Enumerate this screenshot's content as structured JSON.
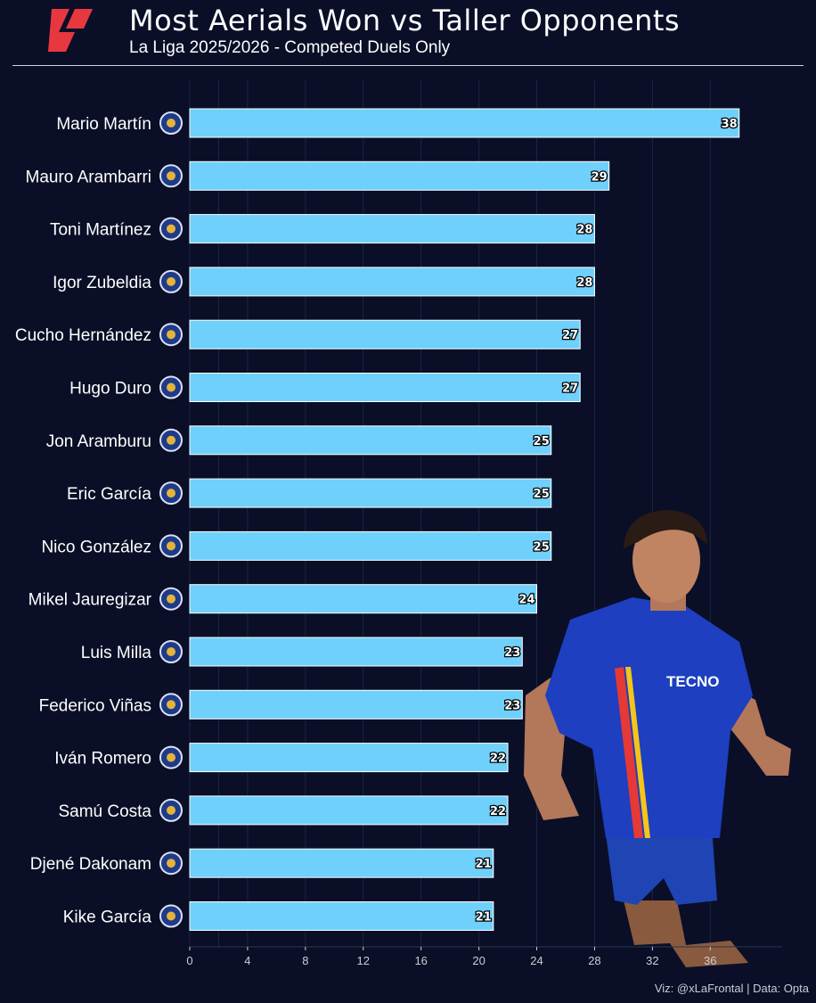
{
  "header": {
    "title": "Most Aerials Won vs Taller Opponents",
    "subtitle": "La Liga 2025/2026 - Competed Duels Only",
    "logo_icon": "laliga-logo-icon",
    "logo_color": "#e8383f"
  },
  "footer": {
    "credit": "Viz: @xLaFrontal | Data: Opta"
  },
  "colors": {
    "background": "#0a0f27",
    "bar": "#6fd0fb",
    "bar_border": "#ffffff",
    "grid": "#1d2542"
  },
  "photo": {
    "icon": "player-photo-getafe-kit-icon"
  },
  "chart_data": {
    "type": "bar",
    "orientation": "horizontal",
    "title": "Most Aerials Won vs Taller Opponents",
    "subtitle": "La Liga 2025/2026 - Competed Duels Only",
    "xlabel": "",
    "ylabel": "",
    "xlim": [
      0,
      41
    ],
    "xticks": [
      0,
      4,
      8,
      12,
      16,
      20,
      24,
      28,
      32,
      36
    ],
    "grid": "vertical",
    "categories": [
      "Mario Martín",
      "Mauro Arambarri",
      "Toni Martínez",
      "Igor Zubeldia",
      "Cucho Hernández",
      "Hugo Duro",
      "Jon Aramburu",
      "Eric García",
      "Nico González",
      "Mikel Jauregizar",
      "Luis Milla",
      "Federico Viñas",
      "Iván Romero",
      "Samú Costa",
      "Djené Dakonam",
      "Kike García"
    ],
    "values": [
      38,
      29,
      28,
      28,
      27,
      27,
      25,
      25,
      25,
      24,
      23,
      23,
      22,
      22,
      21,
      21
    ],
    "team_badges": [
      "getafe-badge-icon",
      "getafe-badge-icon",
      "alaves-badge-icon",
      "real-sociedad-badge-icon",
      "real-betis-badge-icon",
      "valencia-badge-icon",
      "real-sociedad-badge-icon",
      "barcelona-badge-icon",
      "atletico-madrid-badge-icon",
      "athletic-club-badge-icon",
      "getafe-badge-icon",
      "real-oviedo-badge-icon",
      "levante-badge-icon",
      "mallorca-badge-icon",
      "getafe-badge-icon",
      "espanyol-badge-icon"
    ]
  }
}
